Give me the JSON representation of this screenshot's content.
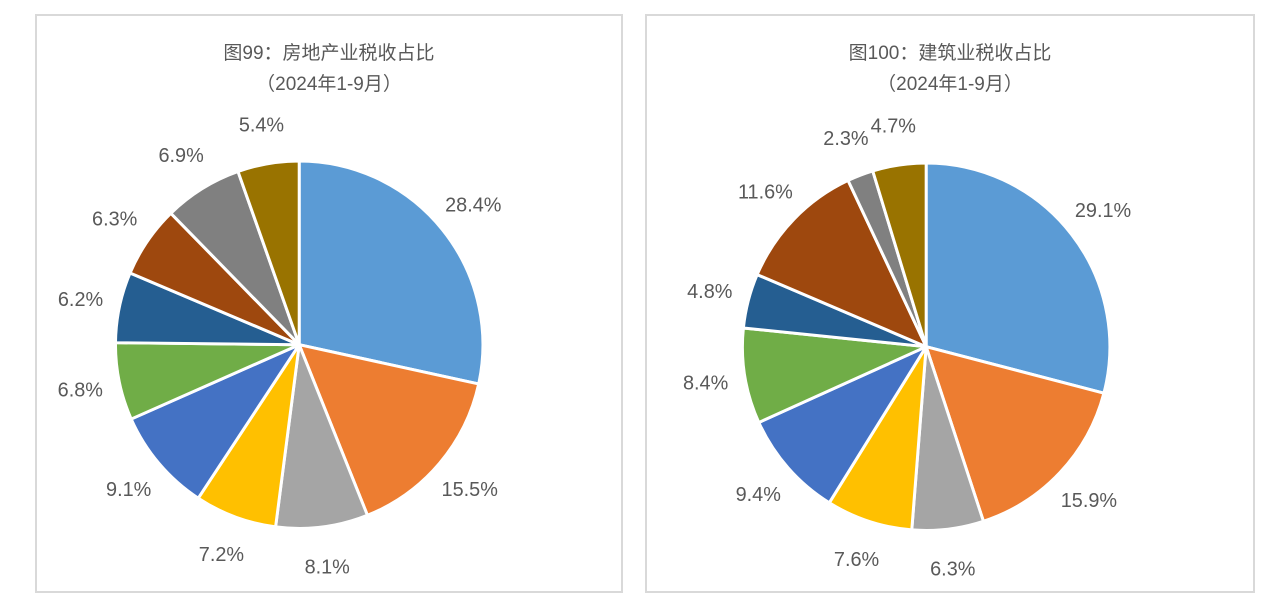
{
  "page": {
    "background": "#FFFFFF",
    "panel_border_color": "#D9D9D9",
    "text_color": "#595959"
  },
  "chart_data": [
    {
      "type": "pie",
      "title": "图99：房地产业税收占比",
      "subtitle": "（2024年1-9月）",
      "labels": [
        "28.4%",
        "15.5%",
        "8.1%",
        "7.2%",
        "9.1%",
        "6.8%",
        "6.2%",
        "6.3%",
        "6.9%",
        "5.4%"
      ],
      "values": [
        28.4,
        15.5,
        8.1,
        7.2,
        9.1,
        6.8,
        6.2,
        6.3,
        6.9,
        5.4
      ],
      "colors": [
        "#5B9BD5",
        "#ED7D31",
        "#A5A5A5",
        "#FFC000",
        "#4472C4",
        "#70AD47",
        "#255E91",
        "#9E480E",
        "#808080",
        "#997300"
      ],
      "start_angle_deg": 0,
      "direction": "clockwise",
      "label_position": "outside",
      "legend": "none",
      "label_color": "#595959",
      "title_color": "#595959",
      "slice_border_color": "#FFFFFF"
    },
    {
      "type": "pie",
      "title": "图100：建筑业税收占比",
      "subtitle": "（2024年1-9月）",
      "labels": [
        "29.1%",
        "15.9%",
        "6.3%",
        "7.6%",
        "9.4%",
        "8.4%",
        "4.8%",
        "11.6%",
        "2.3%",
        "4.7%"
      ],
      "values": [
        29.1,
        15.9,
        6.3,
        7.6,
        9.4,
        8.4,
        4.8,
        11.6,
        2.3,
        4.7
      ],
      "colors": [
        "#5B9BD5",
        "#ED7D31",
        "#A5A5A5",
        "#FFC000",
        "#4472C4",
        "#70AD47",
        "#255E91",
        "#9E480E",
        "#808080",
        "#997300"
      ],
      "start_angle_deg": 0,
      "direction": "clockwise",
      "label_position": "outside",
      "legend": "none",
      "label_color": "#595959",
      "title_color": "#595959",
      "slice_border_color": "#FFFFFF"
    }
  ]
}
